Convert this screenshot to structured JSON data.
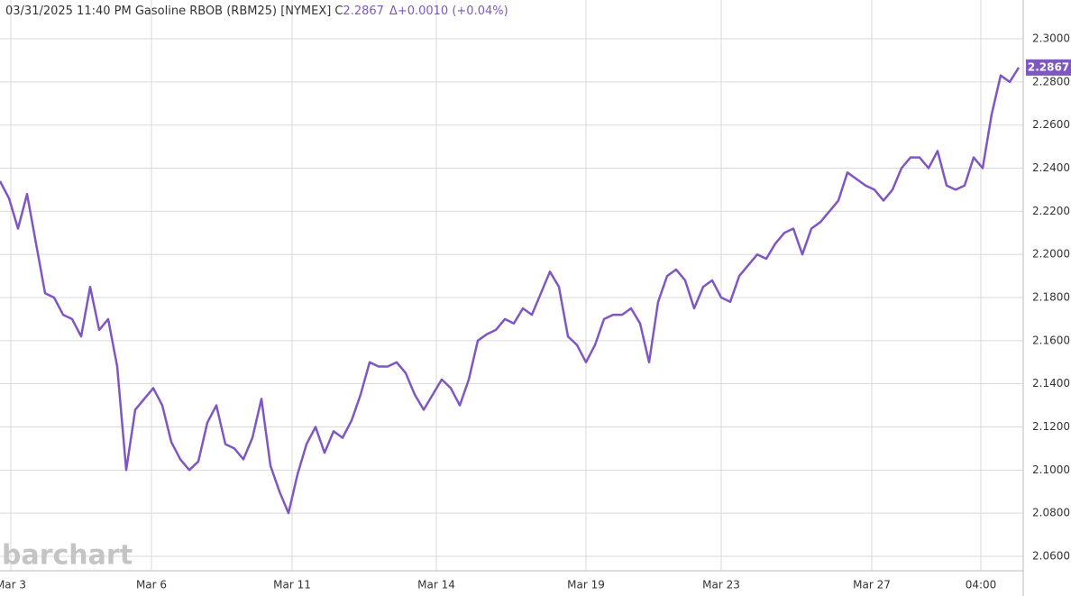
{
  "chart_data": {
    "type": "line",
    "title": "03/31/2025  11:40 PM Gasoline RBOB (RBM25) [NYMEX]",
    "close_label": "C",
    "change": "Δ+0.0010 (+0.04%)",
    "watermark": "barchart",
    "series": [
      {
        "name": "Gasoline RBOB (RBM25)",
        "color": "#7e57c2",
        "values": [
          2.234,
          2.226,
          2.212,
          2.228,
          2.205,
          2.182,
          2.18,
          2.172,
          2.17,
          2.162,
          2.185,
          2.165,
          2.17,
          2.148,
          2.1,
          2.128,
          2.133,
          2.138,
          2.13,
          2.113,
          2.105,
          2.1,
          2.104,
          2.122,
          2.13,
          2.112,
          2.11,
          2.105,
          2.115,
          2.133,
          2.102,
          2.09,
          2.08,
          2.098,
          2.112,
          2.12,
          2.108,
          2.118,
          2.115,
          2.123,
          2.135,
          2.15,
          2.148,
          2.148,
          2.15,
          2.145,
          2.135,
          2.128,
          2.135,
          2.142,
          2.138,
          2.13,
          2.142,
          2.16,
          2.163,
          2.165,
          2.17,
          2.168,
          2.175,
          2.172,
          2.182,
          2.192,
          2.185,
          2.162,
          2.158,
          2.15,
          2.158,
          2.17,
          2.172,
          2.172,
          2.175,
          2.168,
          2.15,
          2.178,
          2.19,
          2.193,
          2.188,
          2.175,
          2.185,
          2.188,
          2.18,
          2.178,
          2.19,
          2.195,
          2.2,
          2.198,
          2.205,
          2.21,
          2.212,
          2.2,
          2.212,
          2.215,
          2.22,
          2.225,
          2.238,
          2.235,
          2.232,
          2.23,
          2.225,
          2.23,
          2.24,
          2.245,
          2.245,
          2.24,
          2.248,
          2.232,
          2.23,
          2.232,
          2.245,
          2.24,
          2.265,
          2.283,
          2.28,
          2.2867
        ]
      }
    ],
    "xlim": [
      0,
      113.5
    ],
    "xticks": [
      {
        "value": 1.2,
        "label": "Mar 3"
      },
      {
        "value": 16.8,
        "label": "Mar 6"
      },
      {
        "value": 32.4,
        "label": "Mar 11"
      },
      {
        "value": 48.4,
        "label": "Mar 14"
      },
      {
        "value": 65,
        "label": "Mar 19"
      },
      {
        "value": 80,
        "label": "Mar 23"
      },
      {
        "value": 96.7,
        "label": "Mar 27"
      },
      {
        "value": 108.8,
        "label": "04:00"
      }
    ],
    "ylim": [
      2.0533,
      2.318
    ],
    "yticks": [
      {
        "value": 2.06,
        "label": "2.0600"
      },
      {
        "value": 2.08,
        "label": "2.0800"
      },
      {
        "value": 2.1,
        "label": "2.1000"
      },
      {
        "value": 2.12,
        "label": "2.1200"
      },
      {
        "value": 2.14,
        "label": "2.1400"
      },
      {
        "value": 2.16,
        "label": "2.1600"
      },
      {
        "value": 2.18,
        "label": "2.1800"
      },
      {
        "value": 2.2,
        "label": "2.2000"
      },
      {
        "value": 2.22,
        "label": "2.2200"
      },
      {
        "value": 2.24,
        "label": "2.2400"
      },
      {
        "value": 2.26,
        "label": "2.2600"
      },
      {
        "value": 2.28,
        "label": "2.2800"
      },
      {
        "value": 2.3,
        "label": "2.3000"
      }
    ],
    "grid": true
  }
}
